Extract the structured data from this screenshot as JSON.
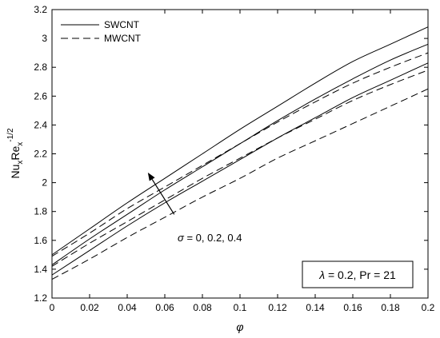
{
  "chart_data": {
    "type": "line",
    "xlabel": "φ",
    "ylabel_parts": {
      "base": "Nu",
      "sub1": "x",
      "mid": "Re",
      "sub2": "x",
      "sup": "-1/2"
    },
    "xlim": [
      0,
      0.2
    ],
    "ylim": [
      1.2,
      3.2
    ],
    "x_ticks": [
      "0",
      "0.02",
      "0.04",
      "0.06",
      "0.08",
      "0.1",
      "0.12",
      "0.14",
      "0.16",
      "0.18",
      "0.2"
    ],
    "y_ticks": [
      "1.2",
      "1.4",
      "1.6",
      "1.8",
      "2",
      "2.2",
      "2.4",
      "2.6",
      "2.8",
      "3",
      "3.2"
    ],
    "x": [
      0,
      0.02,
      0.04,
      0.06,
      0.08,
      0.1,
      0.12,
      0.14,
      0.16,
      0.18,
      0.2
    ],
    "series": [
      {
        "group": "SWCNT",
        "style": "solid",
        "sigma": "0.4",
        "values": [
          1.5,
          1.68,
          1.86,
          2.03,
          2.2,
          2.37,
          2.53,
          2.69,
          2.84,
          2.96,
          3.08
        ]
      },
      {
        "group": "SWCNT",
        "style": "solid",
        "sigma": "0.2",
        "values": [
          1.43,
          1.61,
          1.78,
          1.95,
          2.11,
          2.27,
          2.43,
          2.58,
          2.72,
          2.85,
          2.96
        ]
      },
      {
        "group": "SWCNT",
        "style": "solid",
        "sigma": "0",
        "values": [
          1.36,
          1.53,
          1.7,
          1.86,
          2.01,
          2.16,
          2.31,
          2.45,
          2.59,
          2.71,
          2.83
        ]
      },
      {
        "group": "MWCNT",
        "style": "dashed",
        "sigma": "0.4",
        "values": [
          1.49,
          1.65,
          1.82,
          1.97,
          2.12,
          2.27,
          2.42,
          2.56,
          2.69,
          2.8,
          2.9
        ]
      },
      {
        "group": "MWCNT",
        "style": "dashed",
        "sigma": "0.2",
        "values": [
          1.42,
          1.58,
          1.73,
          1.88,
          2.03,
          2.17,
          2.31,
          2.44,
          2.57,
          2.68,
          2.78
        ]
      },
      {
        "group": "MWCNT",
        "style": "dashed",
        "sigma": "0",
        "values": [
          1.33,
          1.47,
          1.62,
          1.76,
          1.9,
          2.03,
          2.17,
          2.29,
          2.41,
          2.53,
          2.65
        ]
      }
    ],
    "legend": [
      {
        "label": "SWCNT",
        "style": "solid"
      },
      {
        "label": "MWCNT",
        "style": "dashed"
      }
    ],
    "legend_position": "top-left",
    "annotation": {
      "sigma_symbol": "σ",
      "text": " = 0, 0.2, 0.4",
      "arrow_from": {
        "x": 0.065,
        "y": 1.78
      },
      "arrow_to": {
        "x": 0.051,
        "y": 2.07
      }
    },
    "param_box": {
      "lambda_symbol": "λ",
      "text": " = 0.2, Pr = 21"
    },
    "grid": false,
    "line_color": "#000000"
  }
}
